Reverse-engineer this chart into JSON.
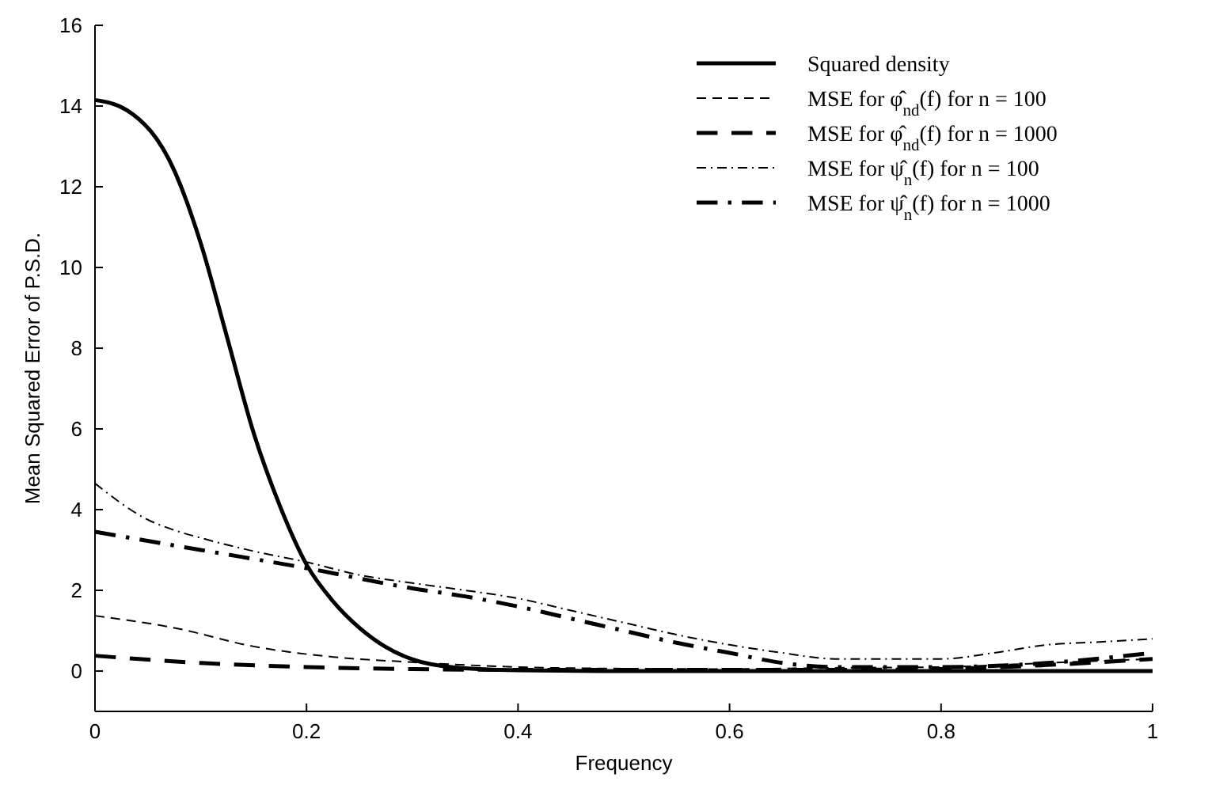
{
  "chart_data": {
    "type": "line",
    "xlabel": "Frequency",
    "ylabel": "Mean Squared Error of P.S.D.",
    "xlim": [
      0,
      1
    ],
    "ylim": [
      -1,
      16
    ],
    "xticks": [
      0,
      0.2,
      0.4,
      0.6,
      0.8,
      1
    ],
    "yticks": [
      0,
      2,
      4,
      6,
      8,
      10,
      12,
      14,
      16
    ],
    "grid": false,
    "legend": "top right",
    "marker": "none",
    "series": [
      {
        "name": "Squared density",
        "color": "#000000",
        "line_style": "solid",
        "x": [
          0,
          0.03,
          0.075,
          0.1,
          0.125,
          0.15,
          0.175,
          0.2,
          0.225,
          0.25,
          0.274,
          0.3,
          0.34,
          0.4,
          0.5,
          0.7,
          1
        ],
        "values": [
          14.15,
          13.9,
          12.4,
          10.6,
          8.26,
          5.9,
          4.08,
          2.64,
          1.73,
          1.07,
          0.61,
          0.29,
          0.09,
          0.02,
          0,
          0,
          0
        ]
      },
      {
        "name": "MSE for φ̂$_{nd}$(f) for n = 100",
        "color": "#000000",
        "line_style": "dashed",
        "x": [
          0,
          0.075,
          0.15,
          0.225,
          0.3,
          0.4,
          0.5,
          0.6,
          0.7,
          0.8,
          0.9,
          1
        ],
        "values": [
          1.37,
          1.07,
          0.61,
          0.35,
          0.22,
          0.1,
          0.06,
          0.05,
          0.08,
          0.1,
          0.2,
          0.3
        ]
      },
      {
        "name": "MSE for φ̂$_{nd}$(f) for n = 1000",
        "color": "#000000",
        "line_style": "dashed",
        "x": [
          0,
          0.1,
          0.2,
          0.3,
          0.4,
          0.5,
          0.6,
          0.7,
          0.8,
          0.9,
          1
        ],
        "values": [
          0.38,
          0.2,
          0.1,
          0.05,
          0.03,
          0.03,
          0.03,
          0.03,
          0.05,
          0.15,
          0.3
        ]
      },
      {
        "name": "MSE for ψ̂$_{n}$(f) for n = 100",
        "color": "#000000",
        "line_style": "dashdot",
        "x": [
          0,
          0.05,
          0.075,
          0.1,
          0.15,
          0.2,
          0.25,
          0.3,
          0.35,
          0.4,
          0.45,
          0.5,
          0.55,
          0.6,
          0.65,
          0.7,
          0.8,
          0.85,
          0.9,
          0.95,
          1
        ],
        "values": [
          4.65,
          3.75,
          3.49,
          3.3,
          2.97,
          2.7,
          2.38,
          2.18,
          2.0,
          1.8,
          1.5,
          1.2,
          0.9,
          0.65,
          0.45,
          0.3,
          0.3,
          0.45,
          0.65,
          0.72,
          0.8
        ]
      },
      {
        "name": "MSE for ψ̂$_{n}$(f) for n = 1000",
        "color": "#000000",
        "line_style": "dashdot",
        "x": [
          0,
          0.1,
          0.2,
          0.3,
          0.35,
          0.4,
          0.45,
          0.5,
          0.55,
          0.6,
          0.65,
          0.7,
          0.8,
          0.9,
          1
        ],
        "values": [
          3.45,
          3.0,
          2.55,
          2.05,
          1.85,
          1.6,
          1.3,
          1.0,
          0.7,
          0.45,
          0.2,
          0.1,
          0.1,
          0.2,
          0.45
        ]
      }
    ]
  }
}
